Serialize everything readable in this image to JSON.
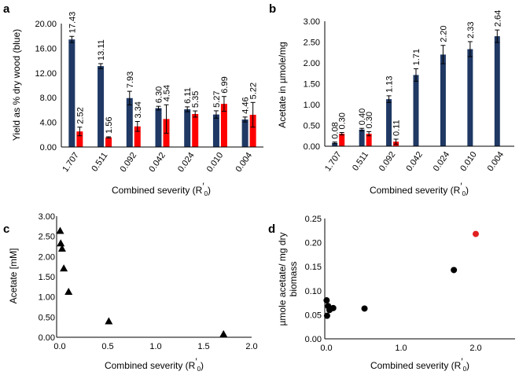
{
  "chart_data": [
    {
      "panel": "a",
      "type": "bar",
      "categories": [
        "1.707",
        "0.511",
        "0.092",
        "0.042",
        "0.024",
        "0.010",
        "0.004"
      ],
      "series": [
        {
          "name": "blue",
          "color": "#1f3864",
          "values": [
            17.43,
            13.11,
            7.93,
            6.3,
            6.11,
            5.27,
            4.46
          ],
          "errors": [
            0.5,
            0.4,
            1.1,
            0.3,
            0.4,
            0.6,
            0.4
          ],
          "labels": [
            "17.43",
            "13.11",
            "7.93",
            "6.30",
            "6.11",
            "5.27",
            "4.46"
          ]
        },
        {
          "name": "red",
          "color": "#ff0000",
          "values": [
            2.52,
            1.56,
            3.34,
            4.54,
            5.35,
            6.99,
            5.22
          ],
          "errors": [
            0.7,
            0.1,
            0.8,
            2.3,
            0.5,
            1.2,
            2.0
          ],
          "labels": [
            "2.52",
            "1.56",
            "3.34",
            "4.54",
            "5.35",
            "6.99",
            "5.22"
          ]
        }
      ],
      "xlabel": "Combined severity (R",
      "xlabel_sub": "0",
      "xlabel_end": ")",
      "ylabel": "Yield as % dry wood (blue)",
      "ylim": [
        0,
        20
      ],
      "yticks": [
        "0.00",
        "4.00",
        "8.00",
        "12.00",
        "16.00",
        "20.00"
      ]
    },
    {
      "panel": "b",
      "type": "bar",
      "categories": [
        "1.707",
        "0.511",
        "0.092",
        "0.042",
        "0.024",
        "0.010",
        "0.004"
      ],
      "series": [
        {
          "name": "blue",
          "color": "#1f3864",
          "values": [
            0.08,
            0.4,
            1.13,
            1.71,
            2.2,
            2.33,
            2.64
          ],
          "errors": [
            0.02,
            0.03,
            0.08,
            0.15,
            0.22,
            0.18,
            0.15
          ],
          "labels": [
            "0.08",
            "0.40",
            "1.13",
            "1.71",
            "2.20",
            "2.33",
            "2.64"
          ]
        },
        {
          "name": "red",
          "color": "#ff0000",
          "values": [
            0.3,
            0.3,
            0.11,
            0,
            0,
            0,
            0
          ],
          "errors": [
            0.03,
            0.05,
            0.06,
            0,
            0,
            0,
            0
          ],
          "labels": [
            "0.30",
            "0.30",
            "0.11",
            "",
            "",
            "",
            ""
          ]
        }
      ],
      "xlabel": "Combined severity (R",
      "xlabel_sub": "0",
      "xlabel_end": ")",
      "ylabel": "Acetate in µmole/mg",
      "ylim": [
        0,
        3
      ],
      "yticks": [
        "0.00",
        "0.50",
        "1.00",
        "1.50",
        "2.00",
        "2.50",
        "3.00"
      ]
    },
    {
      "panel": "c",
      "type": "scatter",
      "marker": "triangle",
      "points": [
        {
          "x": 1.707,
          "y": 0.08
        },
        {
          "x": 0.511,
          "y": 0.4
        },
        {
          "x": 0.092,
          "y": 1.13
        },
        {
          "x": 0.042,
          "y": 1.71
        },
        {
          "x": 0.024,
          "y": 2.2
        },
        {
          "x": 0.01,
          "y": 2.33
        },
        {
          "x": 0.004,
          "y": 2.64
        }
      ],
      "xlabel": "Combined severity (R",
      "xlabel_sub": "0",
      "xlabel_end": ")",
      "ylabel": "Acetate [mM]",
      "xlim": [
        0,
        2
      ],
      "ylim": [
        0,
        3
      ],
      "xticks": [
        "0.0",
        "0.5",
        "1.0",
        "1.5",
        "2.0"
      ],
      "yticks": [
        "0.00",
        "0.50",
        "1.00",
        "1.50",
        "2.00",
        "2.50",
        "3.00"
      ]
    },
    {
      "panel": "d",
      "type": "scatter",
      "marker": "circle",
      "points": [
        {
          "x": 0.004,
          "y": 0.08,
          "color": "#000000"
        },
        {
          "x": 0.01,
          "y": 0.048,
          "color": "#000000"
        },
        {
          "x": 0.024,
          "y": 0.068,
          "color": "#000000"
        },
        {
          "x": 0.042,
          "y": 0.06,
          "color": "#000000"
        },
        {
          "x": 0.092,
          "y": 0.064,
          "color": "#000000"
        },
        {
          "x": 0.511,
          "y": 0.063,
          "color": "#000000"
        },
        {
          "x": 1.707,
          "y": 0.143,
          "color": "#000000"
        },
        {
          "x": 2.0,
          "y": 0.218,
          "color": "#e02020"
        }
      ],
      "xlabel": "Combined severity (R",
      "xlabel_sub": "0",
      "xlabel_end": ")",
      "ylabel_line1": "µmole acetate/ mg dry",
      "ylabel_line2": "biomass",
      "xlim": [
        0,
        2
      ],
      "ylim": [
        0,
        0.25
      ],
      "xticks": [
        "0.0",
        "1.0",
        "2.0"
      ],
      "xtick_values": [
        0,
        1,
        2
      ],
      "yticks": [
        "0.00",
        "0.05",
        "0.10",
        "0.15",
        "0.20",
        "0.25"
      ]
    }
  ]
}
